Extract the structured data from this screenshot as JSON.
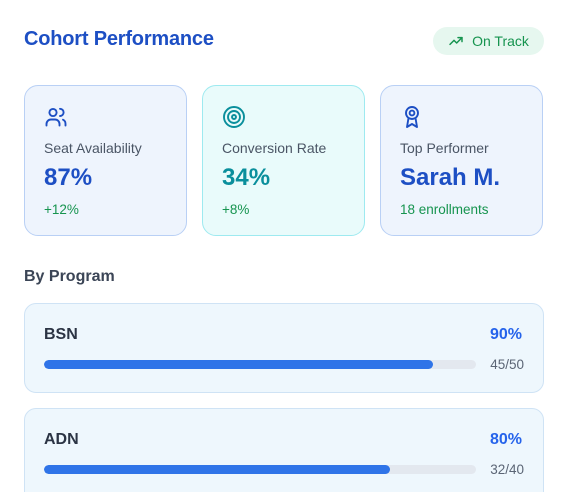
{
  "header": {
    "title": "Cohort Performance",
    "status_badge": "On Track",
    "status_icon": "trending-up-icon"
  },
  "stats": [
    {
      "icon": "users-icon",
      "label": "Seat Availability",
      "value": "87%",
      "sub": "+12%"
    },
    {
      "icon": "target-icon",
      "label": "Conversion Rate",
      "value": "34%",
      "sub": "+8%"
    },
    {
      "icon": "award-icon",
      "label": "Top Performer",
      "value": "Sarah M.",
      "sub": "18 enrollments"
    }
  ],
  "programs_section": {
    "title": "By Program",
    "items": [
      {
        "name": "BSN",
        "percent_label": "90%",
        "progress": 0.9,
        "count": "45/50"
      },
      {
        "name": "ADN",
        "percent_label": "80%",
        "progress": 0.8,
        "count": "32/40"
      }
    ]
  },
  "colors": {
    "primary": "#1d4fc4",
    "teal": "#0a8f9c",
    "success": "#16944f",
    "bar": "#2f74e8"
  }
}
